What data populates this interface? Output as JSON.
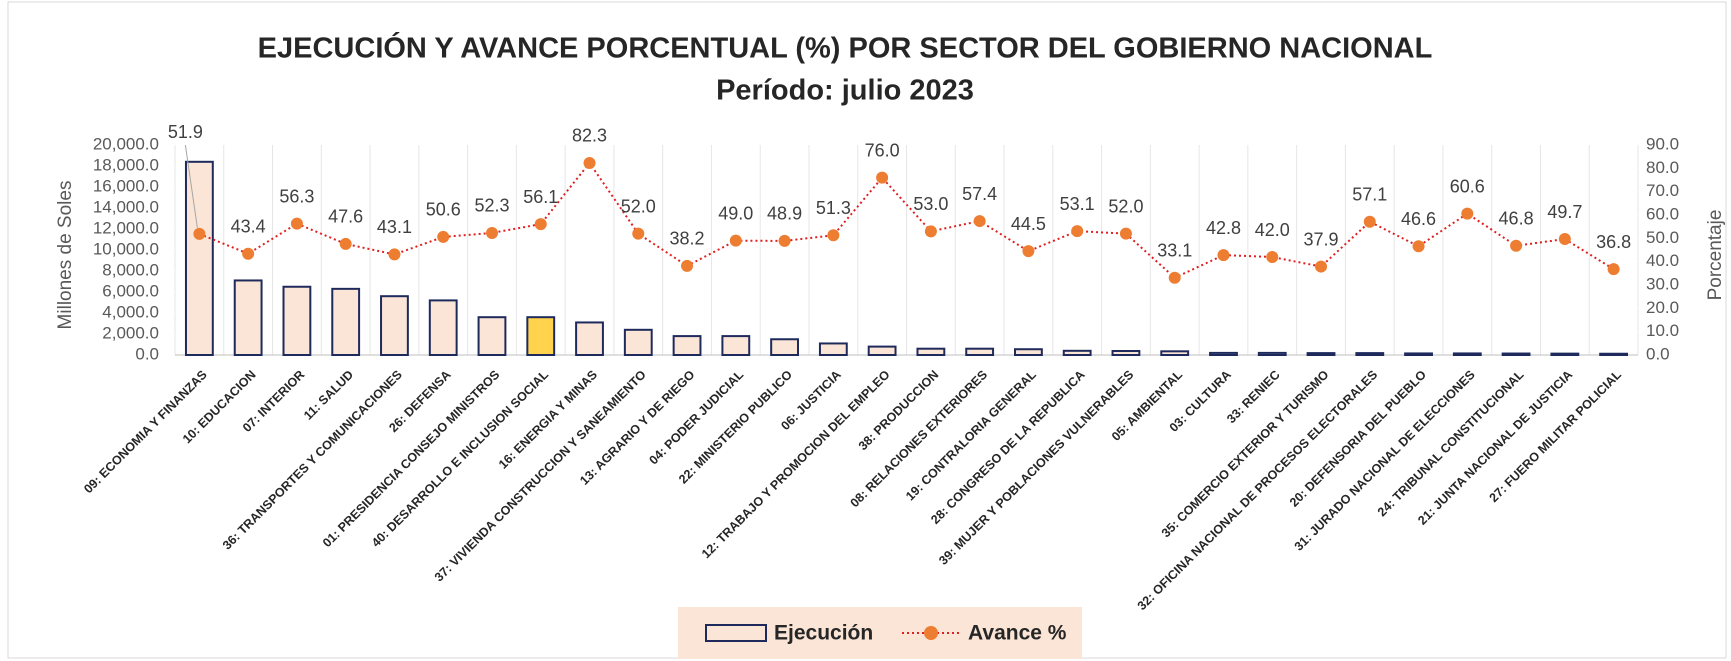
{
  "chart_data": {
    "type": "bar_line",
    "title": "EJECUCIÓN Y AVANCE PORCENTUAL (%) POR SECTOR DEL GOBIERNO NACIONAL",
    "subtitle": "Período: julio   2023",
    "y_label": "Millones de Soles",
    "y2_label": "Porcentaje",
    "categories": [
      "09: ECONOMIA Y FINANZAS",
      "10: EDUCACION",
      "07: INTERIOR",
      "11: SALUD",
      "36: TRANSPORTES Y COMUNICACIONES",
      "26: DEFENSA",
      "01: PRESIDENCIA CONSEJO MINISTROS",
      "40: DESARROLLO E INCLUSION SOCIAL",
      "16: ENERGIA Y MINAS",
      "37: VIVIENDA CONSTRUCCION Y SANEAMIENTO",
      "13: AGRARIO Y DE RIEGO",
      "04: PODER JUDICIAL",
      "22: MINISTERIO PUBLICO",
      "06: JUSTICIA",
      "12: TRABAJO Y PROMOCION DEL EMPLEO",
      "38: PRODUCCION",
      "08: RELACIONES EXTERIORES",
      "19: CONTRALORIA GENERAL",
      "28: CONGRESO DE LA REPUBLICA",
      "39: MUJER Y POBLACIONES VULNERABLES",
      "05: AMBIENTAL",
      "03: CULTURA",
      "33: RENIEC",
      "35: COMERCIO EXTERIOR Y TURISMO",
      "32: OFICINA NACIONAL DE PROCESOS ELECTORALES",
      "20: DEFENSORIA DEL PUEBLO",
      "31: JURADO NACIONAL DE ELECCIONES",
      "24: TRIBUNAL CONSTITUCIONAL",
      "21: JUNTA NACIONAL DE JUSTICIA",
      "27: FUERO MILITAR POLICIAL"
    ],
    "series": [
      {
        "name": "Ejecución",
        "type": "bar",
        "color": "#fbe5d6",
        "stroke": "#1f2a5c",
        "colors": [
          "#fbe5d6",
          "#fbe5d6",
          "#fbe5d6",
          "#fbe5d6",
          "#fbe5d6",
          "#fbe5d6",
          "#fbe5d6",
          "#ffd34d",
          "#fbe5d6",
          "#fbe5d6",
          "#fbe5d6",
          "#fbe5d6",
          "#fbe5d6",
          "#fbe5d6",
          "#fbe5d6",
          "#fbe5d6",
          "#fbe5d6",
          "#fbe5d6",
          "#fbe5d6",
          "#fbe5d6",
          "#fbe5d6",
          "#fbe5d6",
          "#fbe5d6",
          "#fbe5d6",
          "#fbe5d6",
          "#fbe5d6",
          "#fbe5d6",
          "#fbe5d6",
          "#fbe5d6",
          "#fbe5d6"
        ],
        "values": [
          18400,
          7100,
          6500,
          6300,
          5600,
          5200,
          3600,
          3600,
          3100,
          2400,
          1800,
          1800,
          1500,
          1100,
          800,
          600,
          600,
          550,
          400,
          380,
          350,
          200,
          200,
          180,
          180,
          150,
          150,
          140,
          130,
          120
        ]
      },
      {
        "name": "Avance %",
        "type": "line",
        "axis": "y2",
        "color": "#e02020",
        "marker_color": "#ed7d31",
        "values": [
          51.9,
          43.4,
          56.3,
          47.6,
          43.1,
          50.6,
          52.3,
          56.1,
          82.3,
          52.0,
          38.2,
          49.0,
          48.9,
          51.3,
          76.0,
          53.0,
          57.4,
          44.5,
          53.1,
          52.0,
          33.1,
          42.8,
          42.0,
          37.9,
          57.1,
          46.6,
          60.6,
          46.8,
          49.7,
          36.8
        ],
        "value_labels": [
          "51.9",
          "43.4",
          "56.3",
          "47.6",
          "43.1",
          "50.6",
          "52.3",
          "56.1",
          "82.3",
          "52.0",
          "38.2",
          "49.0",
          "48.9",
          "51.3",
          "76.0",
          "53.0",
          "57.4",
          "44.5",
          "53.1",
          "52.0",
          "33.1",
          "42.8",
          "42.0",
          "37.9",
          "57.1",
          "46.6",
          "60.6",
          "46.8",
          "49.7",
          "36.8"
        ]
      }
    ],
    "ylim": [
      0,
      20000
    ],
    "yticks": [
      {
        "value": 0,
        "label": "0.0"
      },
      {
        "value": 2000,
        "label": "2,000.0"
      },
      {
        "value": 4000,
        "label": "4,000.0"
      },
      {
        "value": 6000,
        "label": "6,000.0"
      },
      {
        "value": 8000,
        "label": "8,000.0"
      },
      {
        "value": 10000,
        "label": "10,000.0"
      },
      {
        "value": 12000,
        "label": "12,000.0"
      },
      {
        "value": 14000,
        "label": "14,000.0"
      },
      {
        "value": 16000,
        "label": "16,000.0"
      },
      {
        "value": 18000,
        "label": "18,000.0"
      },
      {
        "value": 20000,
        "label": "20,000.0"
      }
    ],
    "y2lim": [
      0,
      90
    ],
    "y2ticks": [
      {
        "value": 0,
        "label": "0.0"
      },
      {
        "value": 10,
        "label": "10.0"
      },
      {
        "value": 20,
        "label": "20.0"
      },
      {
        "value": 30,
        "label": "30.0"
      },
      {
        "value": 40,
        "label": "40.0"
      },
      {
        "value": 50,
        "label": "50.0"
      },
      {
        "value": 60,
        "label": "60.0"
      },
      {
        "value": 70,
        "label": "70.0"
      },
      {
        "value": 80,
        "label": "80.0"
      },
      {
        "value": 90,
        "label": "90.0"
      }
    ],
    "grid": true,
    "legend": "bottom"
  }
}
